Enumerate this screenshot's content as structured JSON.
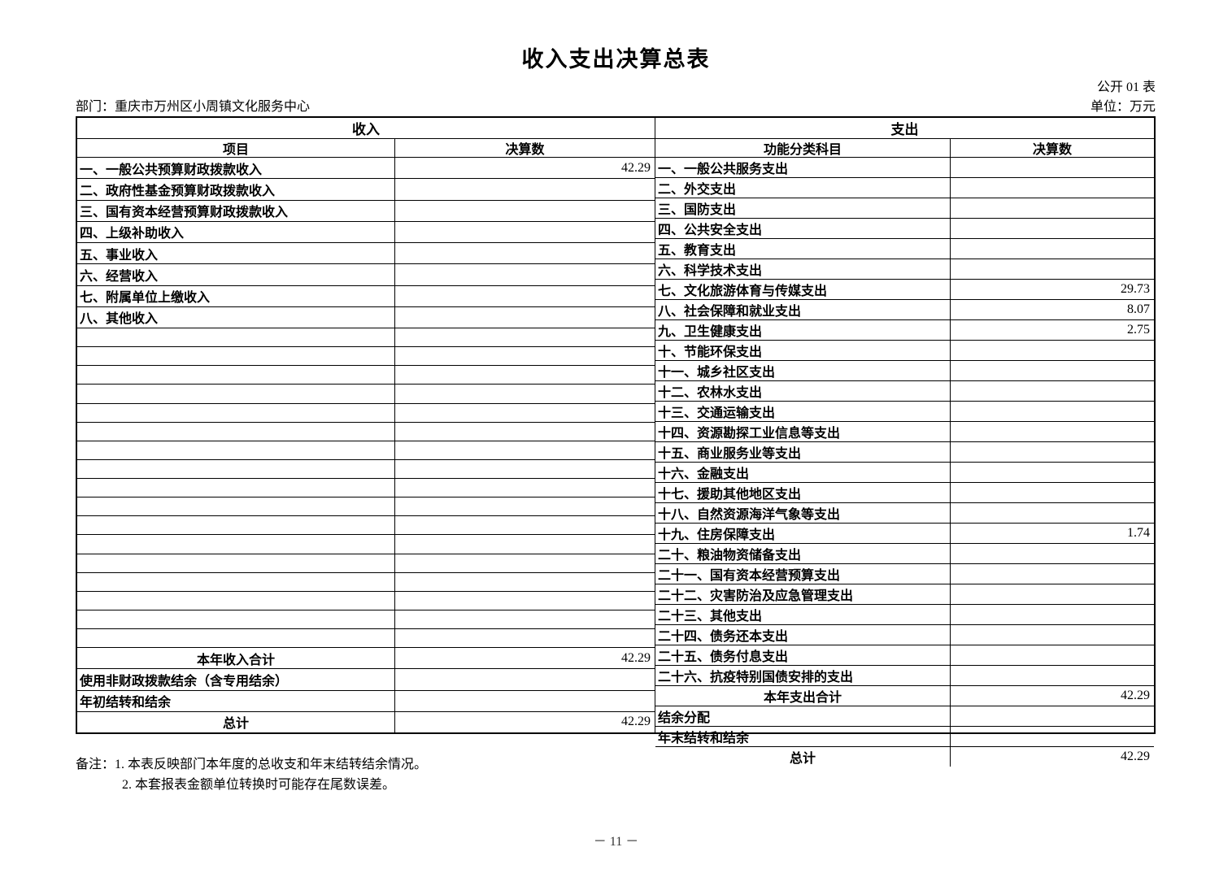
{
  "header": {
    "title": "收入支出决算总表",
    "table_code": "公开 01 表",
    "department": "部门：重庆市万州区小周镇文化服务中心",
    "unit": "单位：万元"
  },
  "table": {
    "income": {
      "section_title": "收入",
      "columns": [
        "项目",
        "决算数"
      ],
      "items": [
        {
          "label": "一、一般公共预算财政拨款收入",
          "value": "42.29"
        },
        {
          "label": "二、政府性基金预算财政拨款收入",
          "value": ""
        },
        {
          "label": "三、国有资本经营预算财政拨款收入",
          "value": ""
        },
        {
          "label": "四、上级补助收入",
          "value": ""
        },
        {
          "label": "五、事业收入",
          "value": ""
        },
        {
          "label": "六、经营收入",
          "value": ""
        },
        {
          "label": "七、附属单位上缴收入",
          "value": ""
        },
        {
          "label": "八、其他收入",
          "value": ""
        }
      ],
      "empty_row_count": 17,
      "summary": [
        {
          "label": "本年收入合计",
          "value": "42.29",
          "align": "center"
        },
        {
          "label": "使用非财政拨款结余（含专用结余）",
          "value": "",
          "align": "left"
        },
        {
          "label": "年初结转和结余",
          "value": "",
          "align": "left"
        },
        {
          "label": "总计",
          "value": "42.29",
          "align": "center"
        }
      ]
    },
    "expense": {
      "section_title": "支出",
      "columns": [
        "功能分类科目",
        "决算数"
      ],
      "items": [
        {
          "label": "一、一般公共服务支出",
          "value": ""
        },
        {
          "label": "二、外交支出",
          "value": ""
        },
        {
          "label": "三、国防支出",
          "value": ""
        },
        {
          "label": "四、公共安全支出",
          "value": ""
        },
        {
          "label": "五、教育支出",
          "value": ""
        },
        {
          "label": "六、科学技术支出",
          "value": ""
        },
        {
          "label": "七、文化旅游体育与传媒支出",
          "value": "29.73"
        },
        {
          "label": "八、社会保障和就业支出",
          "value": "8.07"
        },
        {
          "label": "九、卫生健康支出",
          "value": "2.75"
        },
        {
          "label": "十、节能环保支出",
          "value": ""
        },
        {
          "label": "十一、城乡社区支出",
          "value": ""
        },
        {
          "label": "十二、农林水支出",
          "value": ""
        },
        {
          "label": "十三、交通运输支出",
          "value": ""
        },
        {
          "label": "十四、资源勘探工业信息等支出",
          "value": ""
        },
        {
          "label": "十五、商业服务业等支出",
          "value": ""
        },
        {
          "label": "十六、金融支出",
          "value": ""
        },
        {
          "label": "十七、援助其他地区支出",
          "value": ""
        },
        {
          "label": "十八、自然资源海洋气象等支出",
          "value": ""
        },
        {
          "label": "十九、住房保障支出",
          "value": "1.74"
        },
        {
          "label": "二十、粮油物资储备支出",
          "value": ""
        },
        {
          "label": "二十一、国有资本经营预算支出",
          "value": ""
        },
        {
          "label": "二十二、灾害防治及应急管理支出",
          "value": ""
        },
        {
          "label": "二十三、其他支出",
          "value": ""
        },
        {
          "label": "二十四、债务还本支出",
          "value": ""
        },
        {
          "label": "二十五、债务付息支出",
          "value": ""
        },
        {
          "label": "二十六、抗疫特别国债安排的支出",
          "value": ""
        }
      ],
      "empty_row_count": 0,
      "summary": [
        {
          "label": "本年支出合计",
          "value": "42.29",
          "align": "center"
        },
        {
          "label": "结余分配",
          "value": "",
          "align": "left"
        },
        {
          "label": "年末结转和结余",
          "value": "",
          "align": "left"
        },
        {
          "label": "总计",
          "value": "42.29",
          "align": "center"
        }
      ]
    }
  },
  "notes": [
    "备注：1. 本表反映部门本年度的总收支和年末结转结余情况。",
    "2. 本套报表金额单位转换时可能存在尾数误差。"
  ],
  "footer": {
    "page_number": "－ 11 －"
  }
}
